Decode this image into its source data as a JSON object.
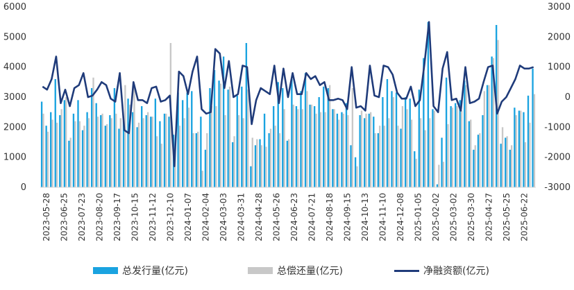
{
  "chart_data": {
    "type": "bar+line",
    "title": "",
    "x_tick_labels": [
      "2023-05-28",
      "2023-06-25",
      "2023-07-23",
      "2023-08-20",
      "2023-09-17",
      "2023-10-15",
      "2023-11-12",
      "2023-12-10",
      "2024-01-07",
      "2024-02-04",
      "2024-03-03",
      "2024-03-31",
      "2024-04-28",
      "2024-05-26",
      "2024-06-23",
      "2024-07-21",
      "2024-08-18",
      "2024-09-15",
      "2024-10-13",
      "2024-11-10",
      "2024-12-08",
      "2025-01-05",
      "2025-02-02",
      "2025-03-02",
      "2025-03-30",
      "2025-04-27",
      "2025-05-25",
      "2025-06-22"
    ],
    "y_left": {
      "ylim": [
        0,
        6000
      ],
      "ticks": [
        "0",
        "1000",
        "2000",
        "3000",
        "4000",
        "5000",
        "6000"
      ]
    },
    "y_right": {
      "ylim": [
        -3000,
        3000
      ],
      "ticks": [
        "-3000",
        "-2000",
        "-1000",
        "0",
        "1000",
        "2000",
        "3000"
      ]
    },
    "legend_position": "bottom",
    "series": [
      {
        "name": "总发行量(亿元)",
        "type": "bar",
        "axis": "left",
        "color": "#1aa3e0",
        "values": [
          2850,
          2050,
          2500,
          3600,
          2400,
          2900,
          1550,
          2450,
          2900,
          1900,
          2500,
          3300,
          2800,
          2400,
          2050,
          2400,
          3300,
          1950,
          2200,
          2950,
          2500,
          2000,
          2700,
          2400,
          2350,
          2950,
          2200,
          2450,
          2350,
          1750,
          3150,
          2900,
          3150,
          3200,
          1800,
          2350,
          1250,
          3300,
          3900,
          3550,
          4350,
          3250,
          1500,
          3050,
          3350,
          4800,
          700,
          1400,
          1600,
          2450,
          1800,
          2700,
          3500,
          3300,
          1550,
          3600,
          2700,
          3200,
          3800,
          2750,
          2700,
          3000,
          3350,
          3300,
          2600,
          2450,
          2500,
          2800,
          1400,
          1000,
          2400,
          2300,
          2450,
          2350,
          1800,
          3000,
          3600,
          3200,
          3150,
          1950,
          3000,
          2950,
          1200,
          3250,
          4300,
          5500,
          2600,
          100,
          1650,
          3650,
          2700,
          2800,
          2900,
          3550,
          2200,
          1250,
          1750,
          2400,
          3400,
          4350,
          5400,
          1450,
          1650,
          1250,
          2650,
          2550,
          2500,
          3050,
          3950
        ],
        "display_values": [
          "2850",
          "2050",
          "2500",
          "3600",
          "2400",
          "2900",
          "1550",
          "2450",
          "2900",
          "1900",
          "2500",
          "3300",
          "2800",
          "2400",
          "2050",
          "2400",
          "3300",
          "1950",
          "2200",
          "2950",
          "2500",
          "2000",
          "2700",
          "2400",
          "2350",
          "2950",
          "2200",
          "2450",
          "2350",
          "1750",
          "3150",
          "2900",
          "3150",
          "3200",
          "1800",
          "2350",
          "1250",
          "3300",
          "3900",
          "3550",
          "4350",
          "3250",
          "1500",
          "3050",
          "3350",
          "4800",
          "700",
          "1400",
          "1600",
          "2450",
          "1800",
          "2700",
          "3500",
          "3300",
          "1550",
          "3600",
          "2700",
          "3200",
          "3800",
          "2750",
          "2700",
          "3000",
          "3350",
          "3300",
          "2600",
          "2450",
          "2500",
          "2800",
          "1400",
          "1000",
          "2400",
          "2300",
          "2450",
          "2350",
          "1800",
          "3000",
          "3600",
          "3200",
          "3150",
          "1950",
          "3000",
          "2950",
          "1200",
          "3250",
          "4300",
          "5500",
          "2600",
          "100",
          "1650",
          "3650",
          "2700",
          "2800",
          "2900",
          "3550",
          "2200",
          "1250",
          "1750",
          "2400",
          "3400",
          "4350",
          "5400",
          "1450",
          "1650",
          "1250",
          "2650",
          "2550",
          "2500",
          "3050",
          "3950"
        ]
      },
      {
        "name": "总偿还量(亿元)",
        "type": "bar",
        "axis": "left",
        "color": "#c8c8c8",
        "values": [
          2450,
          1850,
          2250,
          2150,
          2600,
          3000,
          1650,
          2200,
          2200,
          2050,
          2300,
          3650,
          2350,
          2450,
          2100,
          2300,
          2450,
          2300,
          3400,
          2750,
          3400,
          2150,
          2300,
          2500,
          2350,
          1700,
          1450,
          2450,
          4800,
          1350,
          2050,
          2300,
          2650,
          1800,
          1850,
          550,
          1800,
          2700,
          2700,
          3450,
          2400,
          3350,
          1700,
          2400,
          2300,
          3250,
          1650,
          1600,
          1400,
          1350,
          1950,
          2050,
          1800,
          2600,
          1600,
          2750,
          2600,
          2600,
          3200,
          2750,
          2450,
          2500,
          2500,
          3400,
          2600,
          2250,
          2450,
          2400,
          3300,
          700,
          2550,
          2450,
          2500,
          1800,
          2050,
          2050,
          2300,
          3000,
          2050,
          2700,
          2600,
          2250,
          950,
          2300,
          1900,
          2300,
          2550,
          750,
          850,
          2100,
          2650,
          2700,
          2550,
          3400,
          2250,
          1400,
          1800,
          3200,
          3400,
          4300,
          4900,
          2000,
          1700,
          1400,
          2400,
          2550,
          1500,
          2150,
          3100
        ],
        "display_values": [
          "2450",
          "1850",
          "2250",
          "2150",
          "2600",
          "3000",
          "1650",
          "2200",
          "2200",
          "2050",
          "2300",
          "3650",
          "2350",
          "2450",
          "2100",
          "2300",
          "2450",
          "2300",
          "3400",
          "2750",
          "3400",
          "2150",
          "2300",
          "2500",
          "2350",
          "1700",
          "1450",
          "2450",
          "4800",
          "1350",
          "2050",
          "2300",
          "2650",
          "1800",
          "1850",
          "550",
          "1800",
          "2700",
          "2700",
          "3450",
          "2400",
          "3350",
          "1700",
          "2400",
          "2300",
          "3250",
          "1650",
          "1600",
          "1400",
          "1350",
          "1950",
          "2050",
          "1800",
          "2600",
          "1600",
          "2750",
          "2600",
          "2600",
          "3200",
          "2750",
          "2450",
          "2500",
          "2500",
          "3400",
          "2600",
          "2250",
          "2450",
          "2400",
          "3300",
          "700",
          "2550",
          "2450",
          "2500",
          "1800",
          "2050",
          "2050",
          "2300",
          "3000",
          "2050",
          "2700",
          "2600",
          "2250",
          "950",
          "2300",
          "1900",
          "2300",
          "2550",
          "750",
          "850",
          "2100",
          "2650",
          "2700",
          "2550",
          "3400",
          "2250",
          "1400",
          "1800",
          "3200",
          "3400",
          "4300",
          "4900",
          "2000",
          "1700",
          "1400",
          "2400",
          "2550",
          "1500",
          "2150",
          "3100"
        ]
      },
      {
        "name": "净融资额(亿元)",
        "type": "line",
        "axis": "right",
        "color": "#1f3b7a",
        "values": [
          350,
          250,
          600,
          1350,
          -200,
          250,
          -300,
          300,
          400,
          800,
          0,
          50,
          250,
          500,
          400,
          -50,
          -150,
          800,
          -1100,
          -1200,
          500,
          -100,
          -100,
          -200,
          300,
          350,
          -150,
          -100,
          50,
          -2300,
          850,
          700,
          100,
          850,
          1350,
          -400,
          -550,
          -500,
          1600,
          1450,
          300,
          1200,
          0,
          100,
          1050,
          1000,
          -900,
          -100,
          300,
          200,
          100,
          1050,
          -200,
          950,
          0,
          800,
          100,
          100,
          800,
          600,
          700,
          400,
          500,
          -100,
          -100,
          -50,
          -100,
          -400,
          1000,
          -350,
          -300,
          -450,
          1050,
          50,
          0,
          1050,
          1000,
          750,
          150,
          -50,
          -50,
          350,
          -300,
          -100,
          1100,
          2500,
          -300,
          -500,
          950,
          1500,
          -100,
          -50,
          -450,
          1000,
          -200,
          -150,
          -50,
          500,
          1000,
          1050,
          -550,
          -150,
          0,
          300,
          600,
          1050,
          950,
          950,
          1000
        ],
        "display_values": [
          "350",
          "250",
          "600",
          "1350",
          "-200",
          "250",
          "-300",
          "300",
          "400",
          "800",
          "0",
          "50",
          "250",
          "500",
          "400",
          "-50",
          "-150",
          "800",
          "-1100",
          "-1200",
          "500",
          "-100",
          "-100",
          "-200",
          "300",
          "350",
          "-150",
          "-100",
          "50",
          "-2300",
          "850",
          "700",
          "100",
          "850",
          "1350",
          "-400",
          "-550",
          "-500",
          "1600",
          "1450",
          "300",
          "1200",
          "0",
          "100",
          "1050",
          "1000",
          "-900",
          "-100",
          "300",
          "200",
          "100",
          "1050",
          "-200",
          "950",
          "0",
          "800",
          "100",
          "100",
          "800",
          "600",
          "700",
          "400",
          "500",
          "-100",
          "-100",
          "-50",
          "-100",
          "-400",
          "1000",
          "-350",
          "-300",
          "-450",
          "1050",
          "50",
          "0",
          "1050",
          "1000",
          "750",
          "150",
          "-50",
          "-50",
          "350",
          "-300",
          "-100",
          "1100",
          "2500",
          "-300",
          "-500",
          "950",
          "1500",
          "-100",
          "-50",
          "-450",
          "1000",
          "-200",
          "-150",
          "-50",
          "500",
          "1000",
          "1050",
          "-550",
          "-150",
          "0",
          "300",
          "600",
          "1050",
          "950",
          "950",
          "1000"
        ]
      }
    ]
  }
}
